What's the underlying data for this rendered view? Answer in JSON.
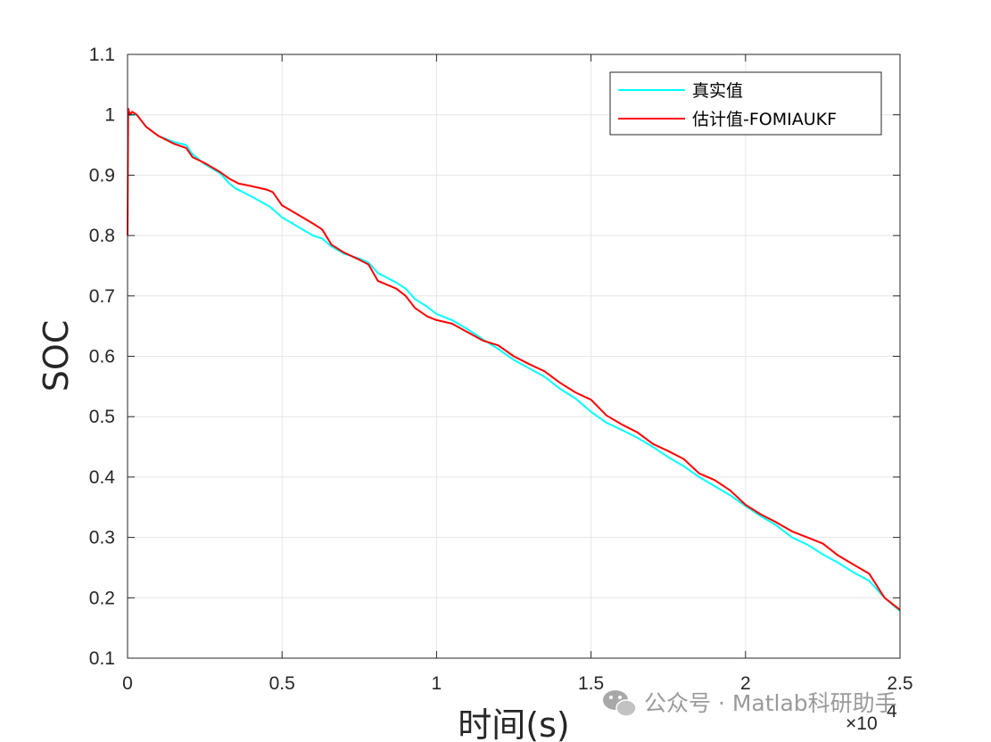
{
  "chart_data": {
    "type": "line",
    "xlabel": "时间(s)",
    "ylabel": "SOC",
    "x_multiplier": "×10",
    "x_multiplier_exp": "4",
    "xlim": [
      0,
      25000
    ],
    "ylim": [
      0.1,
      1.1
    ],
    "xticks": [
      0,
      5000,
      10000,
      15000,
      20000,
      25000
    ],
    "xtick_labels": [
      "0",
      "0.5",
      "1",
      "1.5",
      "2",
      "2.5"
    ],
    "yticks": [
      0.1,
      0.2,
      0.3,
      0.4,
      0.5,
      0.6,
      0.7,
      0.8,
      0.9,
      1.0,
      1.1
    ],
    "ytick_labels": [
      "0.1",
      "0.2",
      "0.3",
      "0.4",
      "0.5",
      "0.6",
      "0.7",
      "0.8",
      "0.9",
      "1",
      "1.1"
    ],
    "grid": true,
    "legend_position": "top-right",
    "series": [
      {
        "name": "真实值",
        "color": "#00ffff",
        "x": [
          0,
          300,
          600,
          1000,
          1500,
          1900,
          2100,
          2500,
          3000,
          3300,
          3500,
          4000,
          4600,
          5000,
          5500,
          6000,
          6300,
          6600,
          7000,
          7500,
          7800,
          8100,
          8700,
          9000,
          9300,
          9700,
          10000,
          10500,
          11000,
          11500,
          12000,
          12500,
          13000,
          13500,
          14000,
          14500,
          15000,
          15500,
          16000,
          16500,
          17000,
          17500,
          18000,
          18500,
          19000,
          19500,
          20000,
          20500,
          21000,
          21500,
          22000,
          22500,
          23000,
          23500,
          24000,
          24500,
          25000
        ],
        "values": [
          1.0,
          1.0,
          0.98,
          0.965,
          0.955,
          0.95,
          0.935,
          0.918,
          0.903,
          0.886,
          0.878,
          0.865,
          0.848,
          0.83,
          0.815,
          0.8,
          0.795,
          0.782,
          0.77,
          0.762,
          0.755,
          0.738,
          0.722,
          0.712,
          0.695,
          0.682,
          0.67,
          0.66,
          0.645,
          0.628,
          0.612,
          0.594,
          0.58,
          0.566,
          0.546,
          0.53,
          0.508,
          0.49,
          0.478,
          0.465,
          0.45,
          0.433,
          0.418,
          0.4,
          0.385,
          0.37,
          0.352,
          0.335,
          0.32,
          0.3,
          0.288,
          0.272,
          0.258,
          0.242,
          0.228,
          0.2,
          0.178
        ]
      },
      {
        "name": "估计值-FOMIAUKF",
        "color": "#ff0000",
        "x": [
          0,
          20,
          80,
          150,
          300,
          600,
          1000,
          1500,
          1900,
          2100,
          2500,
          3000,
          3300,
          3600,
          4000,
          4500,
          4700,
          5000,
          5500,
          6000,
          6300,
          6600,
          7000,
          7500,
          7800,
          8100,
          8700,
          9000,
          9300,
          9700,
          10000,
          10500,
          11000,
          11500,
          12000,
          12500,
          13000,
          13500,
          14000,
          14500,
          15000,
          15500,
          16000,
          16500,
          17000,
          17500,
          18000,
          18500,
          19000,
          19500,
          20000,
          20500,
          21000,
          21500,
          22000,
          22500,
          23000,
          23500,
          24000,
          24500,
          25000
        ],
        "values": [
          0.8,
          1.01,
          1.0,
          1.005,
          1.0,
          0.98,
          0.965,
          0.952,
          0.945,
          0.93,
          0.92,
          0.905,
          0.894,
          0.886,
          0.882,
          0.876,
          0.872,
          0.85,
          0.835,
          0.82,
          0.81,
          0.785,
          0.772,
          0.76,
          0.752,
          0.725,
          0.712,
          0.7,
          0.68,
          0.666,
          0.66,
          0.654,
          0.64,
          0.626,
          0.618,
          0.6,
          0.587,
          0.575,
          0.556,
          0.54,
          0.528,
          0.502,
          0.487,
          0.474,
          0.455,
          0.443,
          0.43,
          0.406,
          0.395,
          0.378,
          0.354,
          0.338,
          0.325,
          0.31,
          0.3,
          0.29,
          0.27,
          0.255,
          0.24,
          0.2,
          0.18
        ]
      }
    ]
  },
  "watermark": {
    "text": "公众号 · Matlab科研助手",
    "icon": "wechat-icon"
  }
}
